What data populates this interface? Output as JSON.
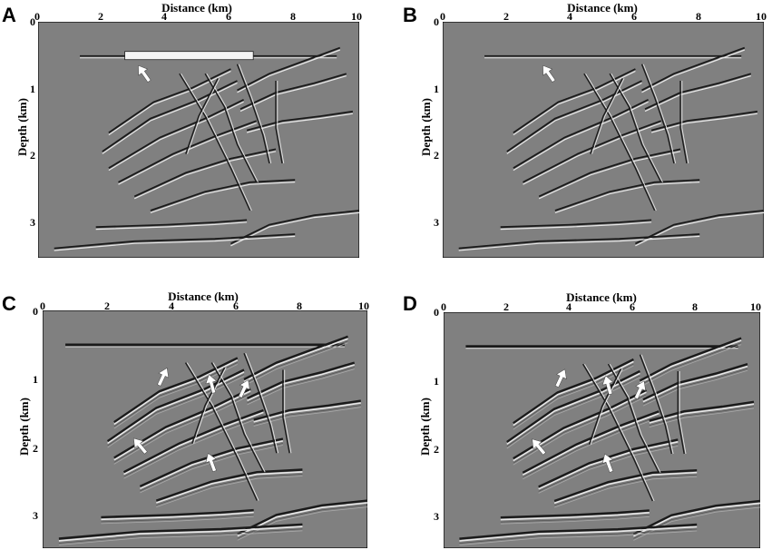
{
  "panels": [
    {
      "letter": "A",
      "xlabel": "Distance (km)",
      "ylabel": "Depth (km)",
      "xticks": [
        "0",
        "2",
        "4",
        "6",
        "8",
        "10"
      ],
      "yticks": [
        "0",
        "1",
        "2",
        "3"
      ],
      "arrows": 1,
      "style": "smooth"
    },
    {
      "letter": "B",
      "xlabel": "Distance (km)",
      "ylabel": "Depth (km)",
      "xticks": [
        "0",
        "2",
        "4",
        "6",
        "8",
        "10"
      ],
      "yticks": [
        "0",
        "1",
        "2",
        "3"
      ],
      "arrows": 1,
      "style": "smooth"
    },
    {
      "letter": "C",
      "xlabel": "Distance (km)",
      "ylabel": "Depth (km)",
      "xticks": [
        "0",
        "2",
        "4",
        "6",
        "8",
        "10"
      ],
      "yticks": [
        "0",
        "1",
        "2",
        "3"
      ],
      "arrows": 5,
      "style": "sharp"
    },
    {
      "letter": "D",
      "xlabel": "Distance (km)",
      "ylabel": "Depth (km)",
      "xticks": [
        "0",
        "2",
        "4",
        "6",
        "8",
        "10"
      ],
      "yticks": [
        "0",
        "1",
        "2",
        "3"
      ],
      "arrows": 5,
      "style": "sharp"
    }
  ],
  "colors": {
    "background": "#808080",
    "reflector_dark": "#1a1a1a",
    "reflector_light": "#e8e8e8",
    "arrow": "#ffffff"
  }
}
